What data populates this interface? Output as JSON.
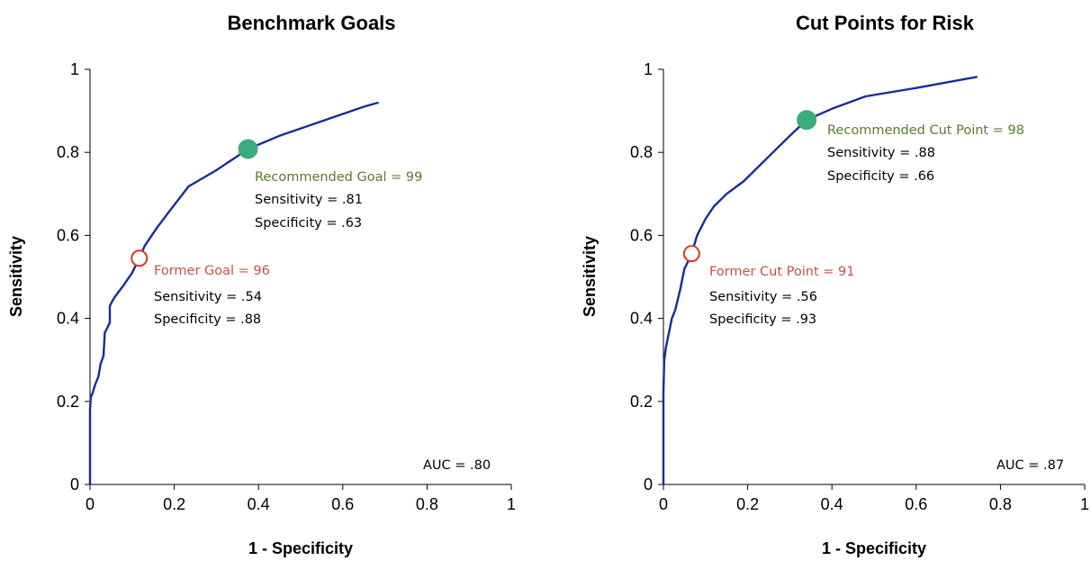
{
  "colors": {
    "curve": "#1a2a9c",
    "recommended_fill": "#3bab7c",
    "recommended_text": "#5a7a2e",
    "former_stroke": "#d63a1a",
    "former_text": "#c8504a",
    "axis": "#000000"
  },
  "chart_data": [
    {
      "type": "line",
      "title": "Benchmark Goals",
      "xlabel": "1 - Specificity",
      "ylabel": "Sensitivity",
      "xlim": [
        0,
        1
      ],
      "ylim": [
        0,
        1
      ],
      "x_ticks": [
        "0",
        "0.2",
        "0.4",
        "0.6",
        "0.8",
        "1"
      ],
      "y_ticks": [
        "0",
        "0.2",
        "0.4",
        "0.6",
        "0.8",
        "1"
      ],
      "grid": false,
      "series": [
        {
          "x": [
            0,
            0,
            0,
            0.002,
            0.006,
            0.012,
            0.02,
            0.025,
            0.032,
            0.035,
            0.04,
            0.047,
            0.047,
            0.052,
            0.058,
            0.065,
            0.08,
            0.1,
            0.117,
            0.13,
            0.16,
            0.19,
            0.234,
            0.3,
            0.375,
            0.45,
            0.55,
            0.65,
            0.685
          ],
          "y": [
            0,
            0.1,
            0.18,
            0.21,
            0.22,
            0.24,
            0.26,
            0.29,
            0.31,
            0.365,
            0.375,
            0.39,
            0.43,
            0.44,
            0.45,
            0.46,
            0.48,
            0.51,
            0.545,
            0.575,
            0.62,
            0.66,
            0.718,
            0.757,
            0.808,
            0.84,
            0.875,
            0.91,
            0.92
          ]
        }
      ],
      "recommended": {
        "x": 0.375,
        "y": 0.808,
        "label": "Recommended Goal = 99",
        "sens": "Sensitivity = .81",
        "spec": "Specificity = .63"
      },
      "former": {
        "x": 0.117,
        "y": 0.545,
        "label": "Former Goal = 96",
        "sens": "Sensitivity = .54",
        "spec": "Specificity = .88"
      },
      "auc": "AUC = .80"
    },
    {
      "type": "line",
      "title": "Cut Points for Risk",
      "xlabel": "1 - Specificity",
      "ylabel": "Sensitivity",
      "xlim": [
        0,
        1
      ],
      "ylim": [
        0,
        1
      ],
      "x_ticks": [
        "0",
        "0.2",
        "0.4",
        "0.6",
        "0.8",
        "1"
      ],
      "y_ticks": [
        "0",
        "0.2",
        "0.4",
        "0.6",
        "0.8",
        "1"
      ],
      "grid": false,
      "series": [
        {
          "x": [
            0,
            0,
            0.002,
            0.006,
            0.012,
            0.02,
            0.028,
            0.04,
            0.05,
            0.06,
            0.067,
            0.08,
            0.09,
            0.1,
            0.12,
            0.15,
            0.19,
            0.25,
            0.3,
            0.34,
            0.4,
            0.48,
            0.6,
            0.745
          ],
          "y": [
            0,
            0.22,
            0.3,
            0.33,
            0.36,
            0.4,
            0.42,
            0.47,
            0.52,
            0.54,
            0.556,
            0.6,
            0.62,
            0.64,
            0.67,
            0.7,
            0.73,
            0.79,
            0.84,
            0.878,
            0.905,
            0.935,
            0.955,
            0.982
          ]
        }
      ],
      "recommended": {
        "x": 0.34,
        "y": 0.878,
        "label": "Recommended Cut Point = 98",
        "sens": "Sensitivity = .88",
        "spec": "Specificity = .66"
      },
      "former": {
        "x": 0.067,
        "y": 0.556,
        "label": "Former Cut Point = 91",
        "sens": "Sensitivity = .56",
        "spec": "Specificity = .93"
      },
      "auc": "AUC = .87"
    }
  ]
}
